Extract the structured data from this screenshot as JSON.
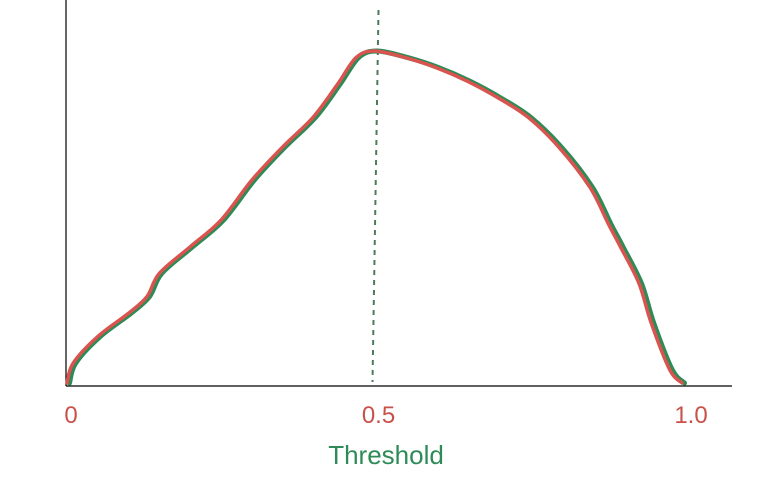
{
  "chart_data": {
    "type": "line",
    "title": "",
    "xlabel": "Threshold",
    "ylabel": "",
    "xlim": [
      0,
      1
    ],
    "ylim": [
      0,
      1
    ],
    "x_ticks": [
      {
        "value": 0,
        "label": "0"
      },
      {
        "value": 0.5,
        "label": "0.5"
      },
      {
        "value": 1.0,
        "label": "1.0"
      }
    ],
    "reference_line": {
      "x": 0.5,
      "style": "dotted"
    },
    "grid": false,
    "series": [
      {
        "color": "#2e8b57",
        "x": [
          0,
          0.01,
          0.05,
          0.1,
          0.13,
          0.15,
          0.2,
          0.25,
          0.3,
          0.35,
          0.4,
          0.44,
          0.47,
          0.5,
          0.55,
          0.6,
          0.65,
          0.7,
          0.75,
          0.8,
          0.85,
          0.88,
          0.9,
          0.93,
          0.95,
          0.98,
          1.0
        ],
        "y": [
          0,
          0.06,
          0.14,
          0.21,
          0.26,
          0.33,
          0.41,
          0.49,
          0.61,
          0.71,
          0.8,
          0.9,
          0.98,
          1.0,
          0.98,
          0.95,
          0.91,
          0.86,
          0.8,
          0.71,
          0.59,
          0.48,
          0.41,
          0.3,
          0.18,
          0.04,
          0
        ]
      },
      {
        "color": "#d9534f",
        "x": [
          0,
          0.01,
          0.05,
          0.1,
          0.13,
          0.15,
          0.2,
          0.25,
          0.3,
          0.35,
          0.4,
          0.44,
          0.47,
          0.5,
          0.55,
          0.6,
          0.65,
          0.7,
          0.75,
          0.8,
          0.85,
          0.88,
          0.9,
          0.93,
          0.95,
          0.98,
          1.0
        ],
        "y": [
          0,
          0.06,
          0.14,
          0.21,
          0.26,
          0.33,
          0.41,
          0.49,
          0.61,
          0.71,
          0.8,
          0.9,
          0.98,
          1.0,
          0.98,
          0.95,
          0.91,
          0.86,
          0.8,
          0.71,
          0.59,
          0.48,
          0.41,
          0.3,
          0.18,
          0.04,
          0
        ]
      }
    ],
    "colors": {
      "axis": "#000000",
      "tick_label": "#c9514a",
      "xlabel": "#2e8b57",
      "reference_line": "#4a7c59"
    }
  }
}
